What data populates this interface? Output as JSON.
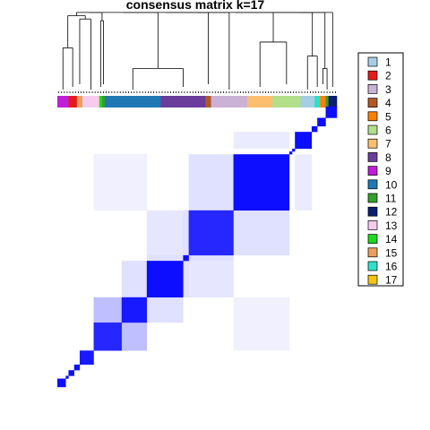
{
  "chart_data": {
    "type": "heatmap",
    "title": "consensus matrix k=17",
    "legend_position": "right",
    "legend": [
      {
        "label": "1",
        "color": "#A6CEE3"
      },
      {
        "label": "2",
        "color": "#E31A1C"
      },
      {
        "label": "3",
        "color": "#CAB2D6"
      },
      {
        "label": "4",
        "color": "#B15928"
      },
      {
        "label": "5",
        "color": "#FF7F00"
      },
      {
        "label": "6",
        "color": "#B2DF8A"
      },
      {
        "label": "7",
        "color": "#FDBF6F"
      },
      {
        "label": "8",
        "color": "#6A3D9A"
      },
      {
        "label": "9",
        "color": "#BE1ED8"
      },
      {
        "label": "10",
        "color": "#1F78B4"
      },
      {
        "label": "11",
        "color": "#33A02C"
      },
      {
        "label": "12",
        "color": "#0B1F6B"
      },
      {
        "label": "13",
        "color": "#F6CBEE"
      },
      {
        "label": "14",
        "color": "#1FD81F"
      },
      {
        "label": "15",
        "color": "#E8A060"
      },
      {
        "label": "16",
        "color": "#2FE0C8"
      },
      {
        "label": "17",
        "color": "#F2C511"
      }
    ],
    "sample_count": 100,
    "class_bar_order": [
      "9",
      "2",
      "15",
      "13",
      "14",
      "11",
      "10",
      "8",
      "4",
      "3",
      "7",
      "6",
      "1",
      "16",
      "5",
      "11",
      "12"
    ],
    "class_sizes": [
      4,
      3,
      2,
      6,
      1,
      1,
      20,
      16,
      2,
      13,
      9,
      10,
      5,
      2,
      2,
      1,
      3
    ],
    "blocks": [
      {
        "label": "12",
        "start": 0,
        "size": 3,
        "consensus": 0.95
      },
      {
        "label": "11",
        "start": 3,
        "size": 1,
        "consensus": 0.95
      },
      {
        "label": "5",
        "start": 4,
        "size": 2,
        "consensus": 0.95
      },
      {
        "label": "16",
        "start": 6,
        "size": 2,
        "consensus": 0.95
      },
      {
        "label": "1",
        "start": 8,
        "size": 5,
        "consensus": 0.9
      },
      {
        "label": "6",
        "start": 13,
        "size": 10,
        "consensus": 0.85
      },
      {
        "label": "7",
        "start": 23,
        "size": 9,
        "consensus": 0.9
      },
      {
        "label": "3",
        "start": 32,
        "size": 13,
        "consensus": 0.95
      },
      {
        "label": "4",
        "start": 45,
        "size": 2,
        "consensus": 0.95
      },
      {
        "label": "8",
        "start": 47,
        "size": 16,
        "consensus": 0.85
      },
      {
        "label": "10",
        "start": 63,
        "size": 20,
        "consensus": 0.95
      },
      {
        "label": "11",
        "start": 83,
        "size": 1,
        "consensus": 0.95
      },
      {
        "label": "14",
        "start": 84,
        "size": 1,
        "consensus": 0.95
      },
      {
        "label": "13",
        "start": 85,
        "size": 6,
        "consensus": 0.95
      },
      {
        "label": "15",
        "start": 91,
        "size": 2,
        "consensus": 0.95
      },
      {
        "label": "2",
        "start": 93,
        "size": 3,
        "consensus": 0.95
      },
      {
        "label": "9",
        "start": 96,
        "size": 4,
        "consensus": 0.95
      }
    ],
    "off_diagonal": [
      {
        "rows": [
          13,
          23
        ],
        "cols": [
          23,
          32
        ],
        "consensus": 0.25
      },
      {
        "rows": [
          23,
          32
        ],
        "cols": [
          32,
          45
        ],
        "consensus": 0.12
      },
      {
        "rows": [
          32,
          45
        ],
        "cols": [
          47,
          63
        ],
        "consensus": 0.1
      },
      {
        "rows": [
          47,
          63
        ],
        "cols": [
          63,
          83
        ],
        "consensus": 0.12
      },
      {
        "rows": [
          45,
          47
        ],
        "cols": [
          32,
          63
        ],
        "consensus": 0.12
      },
      {
        "rows": [
          63,
          83
        ],
        "cols": [
          13,
          32
        ],
        "consensus": 0.06
      },
      {
        "rows": [
          85,
          91
        ],
        "cols": [
          63,
          83
        ],
        "consensus": 0.08
      }
    ],
    "colors": {
      "high": "#0000FF",
      "low": "#FFFFFF"
    }
  }
}
